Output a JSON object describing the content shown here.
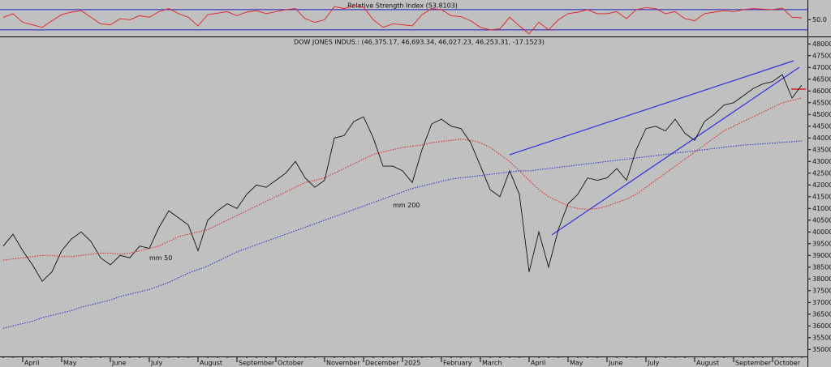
{
  "chart_data": [
    {
      "type": "line",
      "title": "Relative Strength Index (53.8103)",
      "ylim": [
        17,
        89
      ],
      "yticks": [
        {
          "value": 50,
          "label": "50.0"
        }
      ],
      "hlines": [
        30,
        70
      ],
      "hline_color": "#2020c0",
      "series": [
        {
          "color": "#e02020",
          "line_style": "solid",
          "values": [
            55,
            62,
            45,
            40,
            35,
            48,
            60,
            65,
            68,
            55,
            42,
            40,
            52,
            50,
            58,
            55,
            66,
            72,
            62,
            55,
            38,
            60,
            63,
            66,
            58,
            65,
            68,
            62,
            66,
            70,
            72,
            52,
            45,
            50,
            76,
            72,
            78,
            75,
            50,
            35,
            42,
            40,
            38,
            60,
            72,
            70,
            58,
            56,
            48,
            35,
            30,
            32,
            55,
            38,
            22,
            45,
            30,
            50,
            62,
            65,
            70,
            62,
            62,
            66,
            52,
            70,
            74,
            72,
            62,
            66,
            52,
            48,
            62,
            65,
            68,
            66,
            70,
            72,
            71,
            70,
            73,
            55,
            53.8103
          ]
        }
      ]
    },
    {
      "type": "line",
      "title": "DOW JONES INDUS.: (46,375.17, 46,693.34, 46,027.23, 46,253.31, -17.1523)",
      "ylim": [
        34700,
        48250
      ],
      "yticks": [
        35000,
        35500,
        36000,
        36500,
        37000,
        37500,
        38000,
        38500,
        39000,
        39500,
        40000,
        40500,
        41000,
        41500,
        42000,
        42500,
        43000,
        43500,
        44000,
        44500,
        45000,
        45500,
        46000,
        46500,
        47000,
        47500,
        48000
      ],
      "categories": [
        null,
        null,
        "April",
        null,
        null,
        null,
        "May",
        null,
        null,
        null,
        null,
        "June",
        null,
        null,
        null,
        "July",
        null,
        null,
        null,
        null,
        "August",
        null,
        null,
        null,
        "September",
        null,
        null,
        null,
        "October",
        null,
        null,
        null,
        null,
        "November",
        null,
        null,
        null,
        "December",
        null,
        null,
        null,
        "2025",
        null,
        null,
        null,
        "February",
        null,
        null,
        null,
        "March",
        null,
        null,
        null,
        null,
        "April",
        null,
        null,
        null,
        "May",
        null,
        null,
        null,
        "June",
        null,
        null,
        null,
        "July",
        null,
        null,
        null,
        null,
        "August",
        null,
        null,
        null,
        "September",
        null,
        null,
        null,
        "October",
        null,
        null,
        null
      ],
      "series": [
        {
          "color": "#111111",
          "line_style": "solid",
          "values": [
            39400,
            39900,
            39200,
            38600,
            37900,
            38300,
            39200,
            39700,
            40000,
            39600,
            38900,
            38600,
            39000,
            38900,
            39400,
            39300,
            40200,
            40900,
            40600,
            40300,
            39200,
            40500,
            40900,
            41200,
            41000,
            41600,
            42000,
            41900,
            42200,
            42500,
            43000,
            42300,
            41900,
            42200,
            44000,
            44100,
            44700,
            44900,
            44000,
            42800,
            42800,
            42600,
            42100,
            43500,
            44600,
            44800,
            44500,
            44400,
            43800,
            42800,
            41800,
            41500,
            42600,
            41600,
            38300,
            40000,
            38500,
            40100,
            41200,
            41600,
            42300,
            42200,
            42300,
            42700,
            42200,
            43500,
            44400,
            44500,
            44300,
            44800,
            44200,
            43900,
            44700,
            45000,
            45400,
            45500,
            45800,
            46100,
            46300,
            46400,
            46700,
            45700,
            46250
          ]
        },
        {
          "name": "mm 50",
          "color": "#e02020",
          "line_style": "dotted",
          "values": [
            38800,
            38850,
            38900,
            38950,
            39000,
            39000,
            38950,
            38950,
            39000,
            39050,
            39100,
            39100,
            39050,
            39100,
            39200,
            39300,
            39400,
            39600,
            39800,
            39900,
            40000,
            40100,
            40300,
            40500,
            40700,
            40900,
            41100,
            41300,
            41500,
            41700,
            41900,
            42100,
            42200,
            42300,
            42500,
            42700,
            42900,
            43100,
            43300,
            43400,
            43500,
            43600,
            43650,
            43700,
            43800,
            43850,
            43900,
            43950,
            43900,
            43800,
            43600,
            43300,
            43000,
            42600,
            42200,
            41800,
            41500,
            41300,
            41100,
            41000,
            40950,
            41000,
            41100,
            41250,
            41400,
            41600,
            41900,
            42200,
            42500,
            42800,
            43100,
            43400,
            43700,
            44000,
            44300,
            44500,
            44700,
            44900,
            45100,
            45300,
            45500,
            45600,
            45700
          ]
        },
        {
          "name": "mm 200",
          "color": "#2030d0",
          "label_color": "#6a2fa0",
          "line_style": "dotted",
          "values": [
            35900,
            36000,
            36100,
            36200,
            36350,
            36450,
            36550,
            36650,
            36800,
            36900,
            37000,
            37100,
            37250,
            37350,
            37450,
            37550,
            37700,
            37850,
            38050,
            38250,
            38400,
            38550,
            38750,
            38950,
            39150,
            39300,
            39450,
            39600,
            39750,
            39900,
            40050,
            40200,
            40350,
            40500,
            40650,
            40800,
            40950,
            41100,
            41250,
            41400,
            41550,
            41700,
            41850,
            41950,
            42050,
            42150,
            42250,
            42300,
            42350,
            42400,
            42450,
            42500,
            42550,
            42600,
            42600,
            42650,
            42700,
            42750,
            42800,
            42850,
            42900,
            42950,
            43000,
            43050,
            43100,
            43150,
            43200,
            43250,
            43300,
            43350,
            43400,
            43450,
            43500,
            43550,
            43600,
            43650,
            43700,
            43720,
            43750,
            43780,
            43810,
            43840,
            43870
          ]
        }
      ]
    }
  ]
}
